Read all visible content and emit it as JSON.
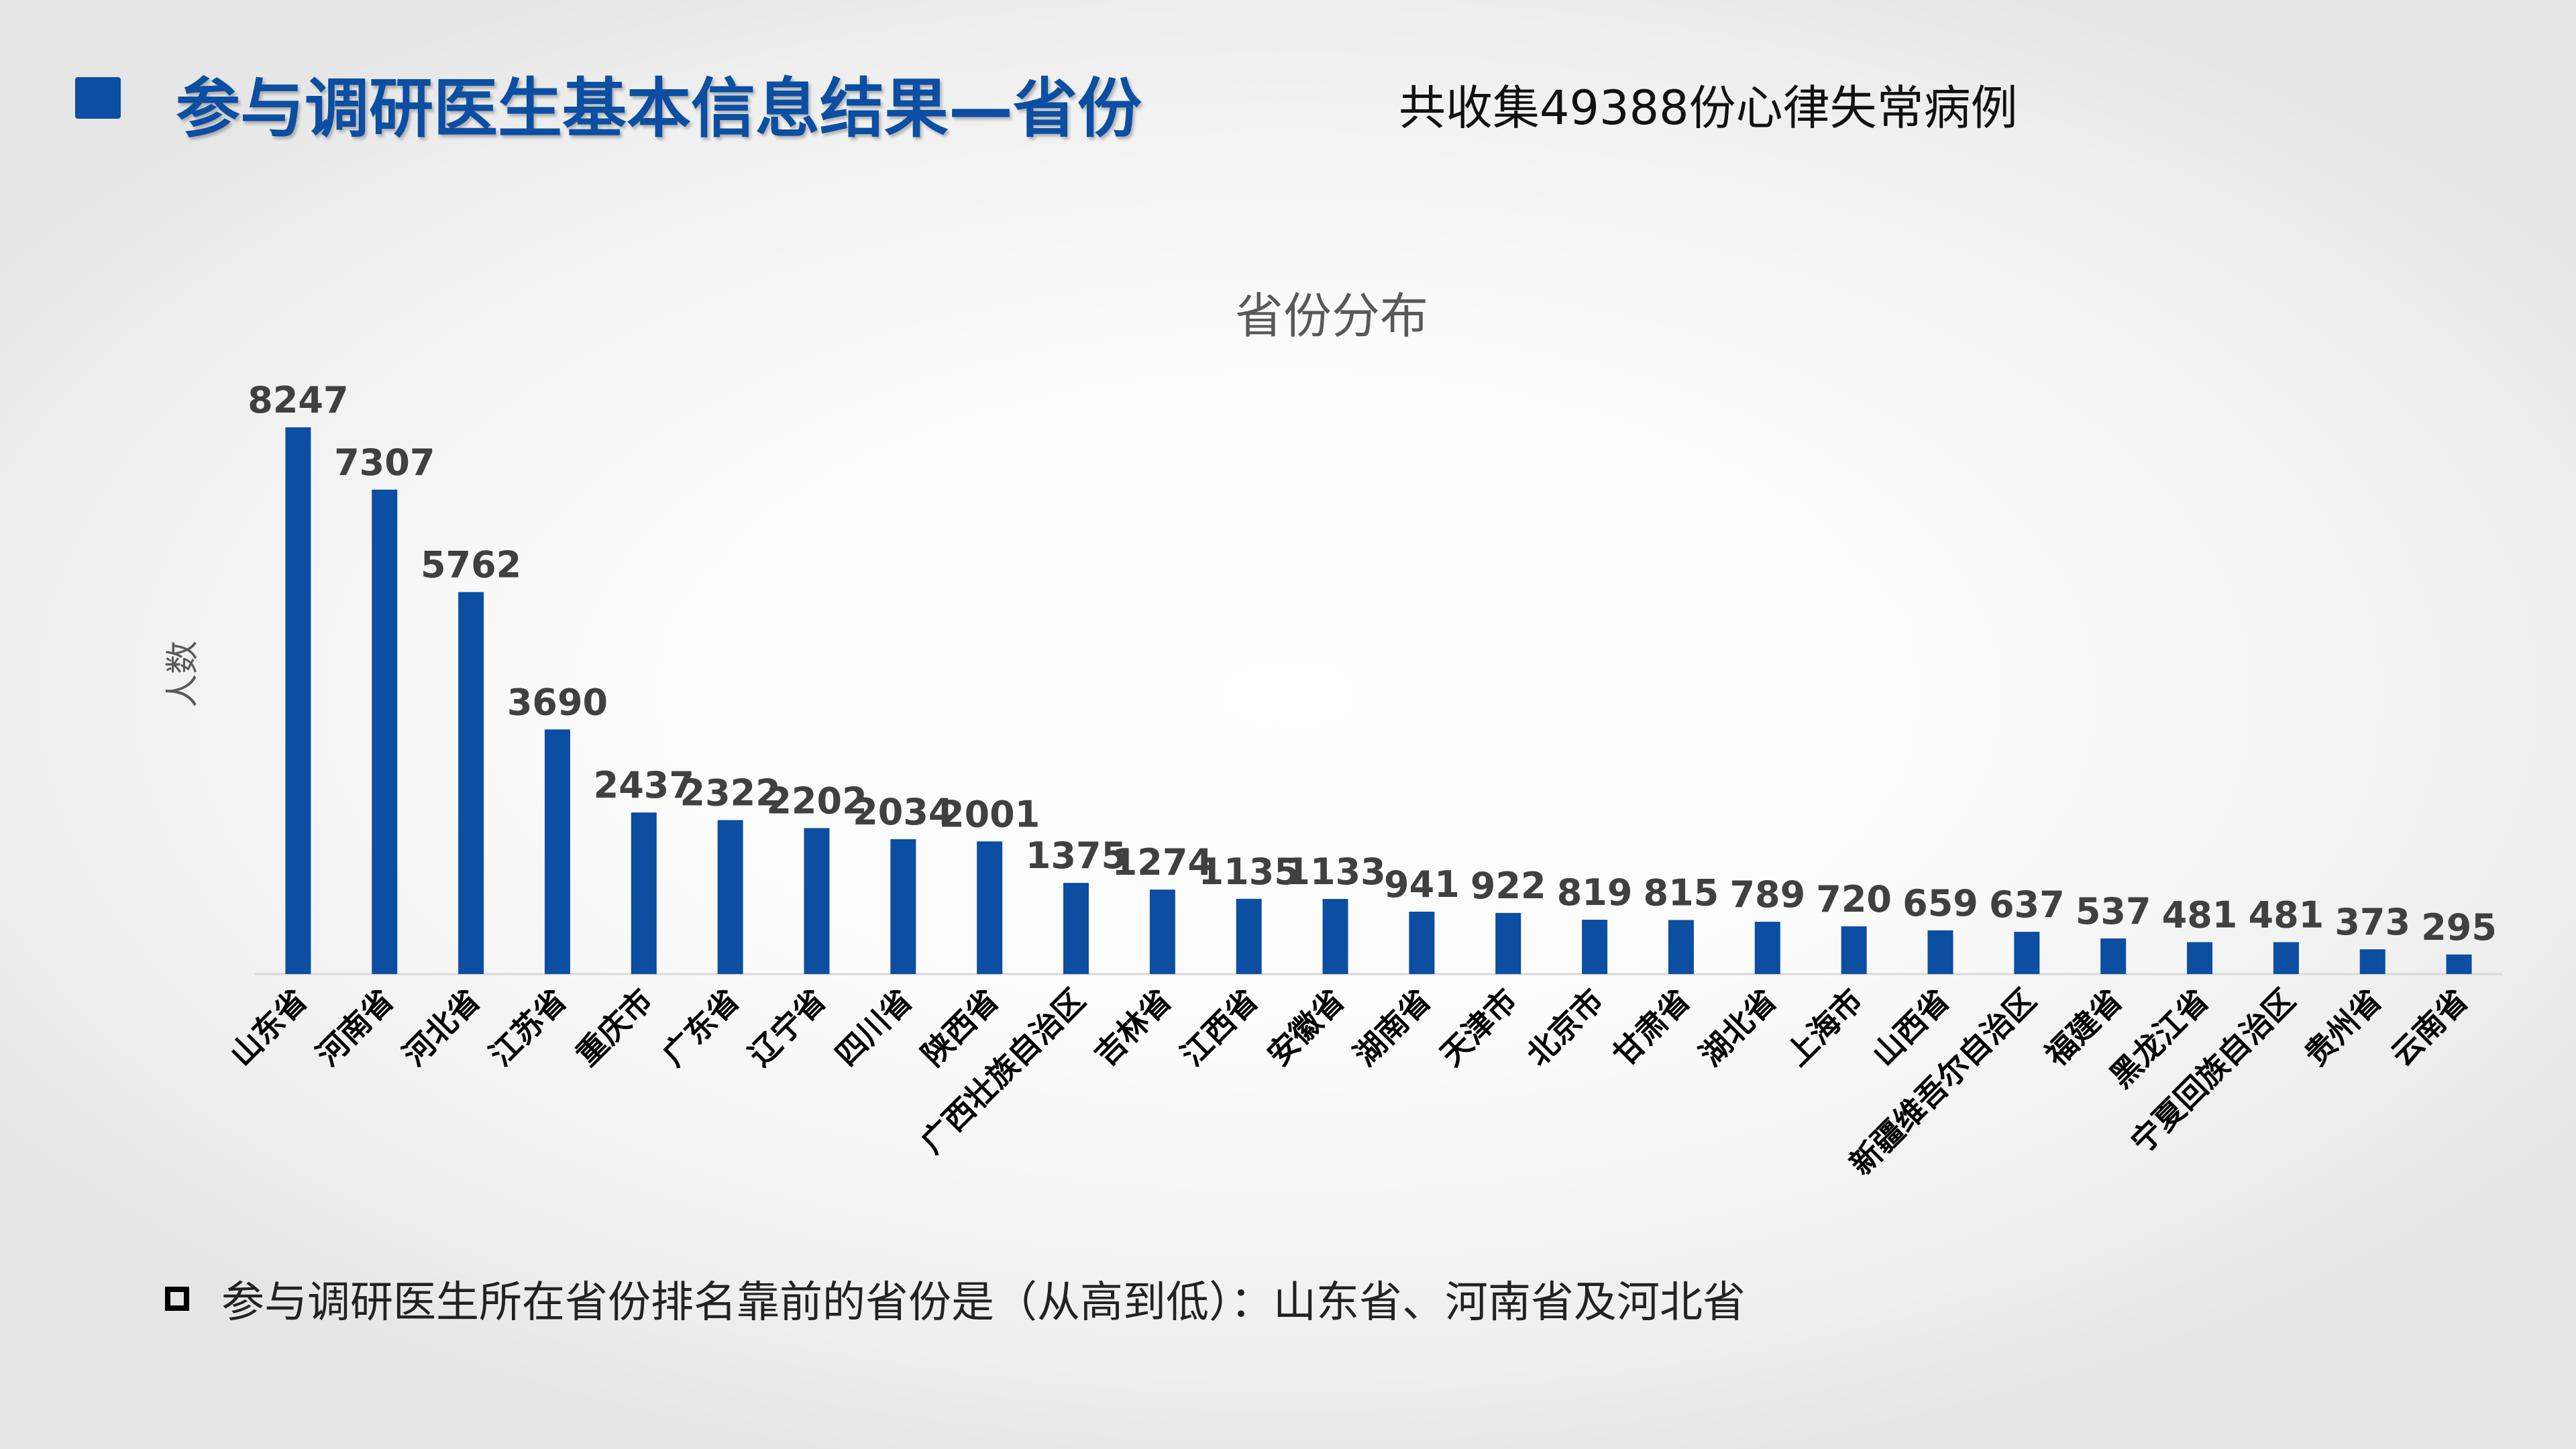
{
  "header": {
    "title": "参与调研医生基本信息结果—省份",
    "subtitle": "共收集49388份心律失常病例",
    "accent_color": "#0b4ea2"
  },
  "chart_data": {
    "type": "bar",
    "title": "省份分布",
    "xlabel": "",
    "ylabel": "人数",
    "ylim": [
      0,
      8247
    ],
    "grid": false,
    "legend": "none",
    "bar_color": "#0b4ea2",
    "categories": [
      "山东省",
      "河南省",
      "河北省",
      "江苏省",
      "重庆市",
      "广东省",
      "辽宁省",
      "四川省",
      "陕西省",
      "广西壮族自治区",
      "吉林省",
      "江西省",
      "安徽省",
      "湖南省",
      "天津市",
      "北京市",
      "甘肃省",
      "湖北省",
      "上海市",
      "山西省",
      "新疆维吾尔自治区",
      "福建省",
      "黑龙江省",
      "宁夏回族自治区",
      "贵州省",
      "云南省"
    ],
    "values": [
      8247,
      7307,
      5762,
      3690,
      2437,
      2322,
      2202,
      2034,
      2001,
      1375,
      1274,
      1135,
      1133,
      941,
      922,
      819,
      815,
      789,
      720,
      659,
      637,
      537,
      481,
      481,
      373,
      295
    ]
  },
  "note": {
    "text": "参与调研医生所在省份排名靠前的省份是（从高到低）：山东省、河南省及河北省"
  }
}
